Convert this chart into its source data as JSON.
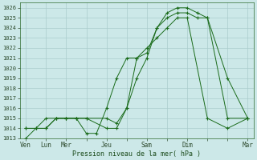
{
  "background_color": "#cce8e8",
  "grid_color": "#aacccc",
  "plot_bg": "#cce8e8",
  "line_color": "#1a6b1a",
  "xlabel": "Pression niveau de la mer( hPa )",
  "ylim": [
    1013,
    1026.5
  ],
  "ytick_min": 1013,
  "ytick_max": 1026,
  "xtick_labels": [
    "Ven",
    "Lun",
    "Mer",
    "",
    "Jeu",
    "",
    "Sam",
    "",
    "Dim",
    "",
    "",
    "Mar"
  ],
  "xtick_positions": [
    0,
    1,
    2,
    3,
    4,
    5,
    6,
    7,
    8,
    9,
    10,
    11
  ],
  "series": [
    {
      "x": [
        0,
        0.5,
        1,
        1.5,
        2,
        2.5,
        3,
        4,
        4.5,
        5,
        5.5,
        6,
        6.5,
        7,
        7.5,
        8,
        8.5,
        9,
        10,
        11
      ],
      "y": [
        1013,
        1014,
        1014,
        1015,
        1015,
        1015,
        1015,
        1015,
        1014.5,
        1016,
        1019,
        1021,
        1024,
        1025.5,
        1026,
        1026,
        1025.5,
        1025,
        1015,
        1015
      ]
    },
    {
      "x": [
        0,
        0.5,
        1,
        1.5,
        2,
        2.5,
        3,
        4,
        4.5,
        5,
        5.5,
        6,
        6.5,
        7,
        7.5,
        8,
        8.5,
        9,
        10,
        11
      ],
      "y": [
        1014,
        1014,
        1014,
        1015,
        1015,
        1015,
        1015,
        1014,
        1014,
        1016,
        1021,
        1021.5,
        1024,
        1025,
        1025.5,
        1025.5,
        1025,
        1025,
        1019,
        1015
      ]
    },
    {
      "x": [
        0,
        0.5,
        1,
        1.5,
        2,
        2.5,
        3,
        3.5,
        4,
        4.5,
        5,
        5.5,
        6,
        6.5,
        7,
        7.5,
        8,
        9,
        10,
        11
      ],
      "y": [
        1014,
        1014,
        1015,
        1015,
        1015,
        1015,
        1013.5,
        1013.5,
        1016,
        1019,
        1021,
        1021,
        1022,
        1023,
        1024,
        1025,
        1025,
        1015,
        1014,
        1015
      ]
    }
  ]
}
